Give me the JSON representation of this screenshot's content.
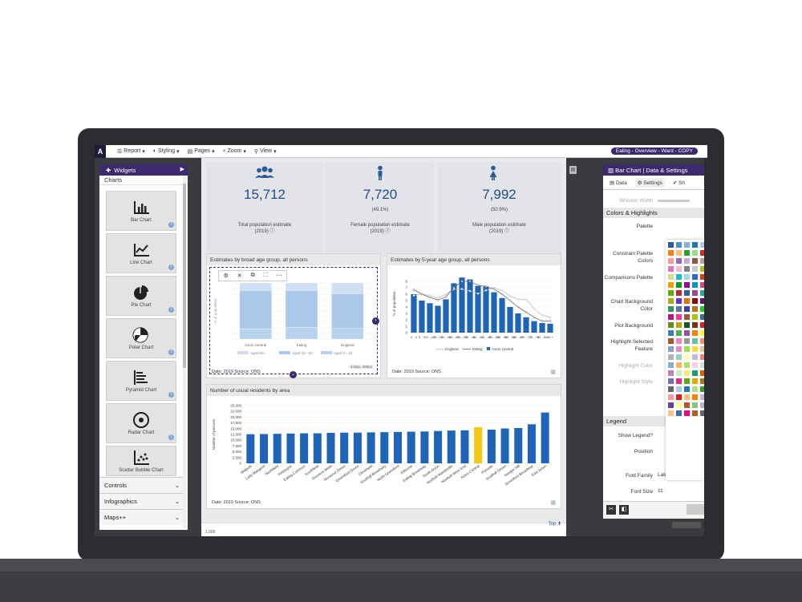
{
  "topbar": {
    "logo": "A",
    "menu": [
      {
        "label": "Report",
        "icon": "list-icon"
      },
      {
        "label": "Styling",
        "icon": "palette-icon"
      },
      {
        "label": "Pages",
        "icon": "pages-icon"
      },
      {
        "label": "Zoom",
        "icon": "search-icon"
      },
      {
        "label": "View",
        "icon": "location-icon"
      }
    ],
    "report_title": "Ealing - Overview - Ward - COPY"
  },
  "left_panel": {
    "header": "Widgets",
    "section": "Charts",
    "widgets": [
      {
        "label": "Bar Chart",
        "icon": "bar-chart-icon"
      },
      {
        "label": "Line Chart",
        "icon": "line-chart-icon"
      },
      {
        "label": "Pie Chart",
        "icon": "pie-chart-icon"
      },
      {
        "label": "Polar Chart",
        "icon": "polar-chart-icon"
      },
      {
        "label": "Pyramid Chart",
        "icon": "pyramid-chart-icon"
      },
      {
        "label": "Radar Chart",
        "icon": "radar-chart-icon"
      },
      {
        "label": "Scatter Bubble Chart",
        "icon": "scatter-chart-icon"
      }
    ],
    "bottom_sections": [
      "Controls",
      "Infographics",
      "Maps++"
    ]
  },
  "kpis": [
    {
      "value": "15,712",
      "pct": "",
      "label_line1": "Total population estimate",
      "label_line2": "(2019)",
      "icon": "people-icon"
    },
    {
      "value": "7,720",
      "pct": "(49.1%)",
      "label_line1": "Female population estimate",
      "label_line2": "(2019)",
      "icon": "female-icon"
    },
    {
      "value": "7,992",
      "pct": "(50.9%)",
      "label_line1": "Male population estimate",
      "label_line2": "(2019)",
      "icon": "male-icon"
    }
  ],
  "panels": {
    "broad_age": {
      "title": "Estimates by broad age group, all persons",
      "foot": "Date: 2019 Source: ONS",
      "size_badge": "443px, 289px",
      "x_labels": [
        "Acton Central",
        "Ealing",
        "England"
      ],
      "legend": [
        "Aged 65+",
        "Aged 16 - 64",
        "Aged 0 - 15"
      ],
      "ylabel": "% of population"
    },
    "five_year": {
      "title": "Estimates by 5-year age group, all persons",
      "foot": "Date: 2019 Source: ONS",
      "legend": [
        "England",
        "Ealing",
        "Acton Central"
      ],
      "ylabel": "% of population"
    },
    "residents": {
      "title": "Number of usual residents by area",
      "foot": "Date: 2019 Source: ONS",
      "ylabel": "Number of persons"
    },
    "bottom_top_link": "Top",
    "bottom_value": "1,000"
  },
  "chart_data": [
    {
      "type": "bar",
      "title": "Estimates by broad age group, all persons",
      "ylabel": "% of population",
      "categories": [
        "Acton Central",
        "Ealing",
        "England"
      ],
      "series": [
        {
          "name": "Aged 0 - 15",
          "values": [
            18,
            21,
            19
          ]
        },
        {
          "name": "Aged 16 - 64",
          "values": [
            69,
            66,
            62
          ]
        },
        {
          "name": "Aged 65+",
          "values": [
            13,
            13,
            19
          ]
        }
      ],
      "ylim": [
        0,
        100
      ],
      "stacked": true
    },
    {
      "type": "bar",
      "title": "Estimates by 5-year age group, all persons",
      "ylabel": "% of population",
      "categories": [
        "0 - 4",
        "5 - 9",
        "10 - 14",
        "15 - 19",
        "20 - 24",
        "25 - 29",
        "30 - 34",
        "35 - 39",
        "40 - 44",
        "45 - 49",
        "50 - 54",
        "55 - 59",
        "60 - 64",
        "65 - 69",
        "70 - 74",
        "75 - 79",
        "80 - 84",
        "85 +"
      ],
      "y_ticks": [
        "0",
        "1",
        "2",
        "3",
        "4",
        "5",
        "6",
        "7",
        "8"
      ],
      "series": [
        {
          "name": "Acton Central",
          "values": [
            6.0,
            5.0,
            4.6,
            4.2,
            5.2,
            7.7,
            8.6,
            8.3,
            7.3,
            7.2,
            6.3,
            5.4,
            4.0,
            3.0,
            2.4,
            1.8,
            1.5,
            1.4
          ]
        },
        {
          "name": "Ealing",
          "values": [
            6.7,
            6.0,
            5.5,
            5.1,
            5.6,
            7.0,
            8.0,
            8.0,
            7.4,
            7.2,
            6.8,
            6.0,
            5.0,
            4.0,
            3.2,
            2.4,
            1.8,
            1.8
          ]
        },
        {
          "name": "England",
          "values": [
            5.8,
            6.0,
            5.8,
            5.4,
            6.0,
            6.8,
            6.8,
            6.5,
            6.1,
            6.6,
            7.0,
            6.6,
            5.7,
            5.2,
            5.2,
            3.7,
            2.7,
            2.4
          ]
        }
      ],
      "ylim": [
        0,
        9
      ]
    },
    {
      "type": "bar",
      "title": "Number of usual residents by area",
      "ylabel": "Number of persons",
      "categories": [
        "Walpole",
        "Lady Margaret",
        "Northfield",
        "Hobbayne",
        "Ealing Common",
        "Southfield",
        "Dormers Wells",
        "Norwood Green",
        "Greenford Green",
        "Cleveland",
        "Southall Broadway",
        "North Greenford",
        "Elthorne",
        "Ealing Broadway",
        "South Acton",
        "Northolt Mandeville",
        "Northolt West End",
        "Acton Central",
        "Perivale",
        "Southall Green",
        "Hanger Hill",
        "Greenford Broadway",
        "East Acton"
      ],
      "values": [
        12600,
        12700,
        12800,
        12900,
        13000,
        13000,
        13200,
        13300,
        13300,
        13400,
        13500,
        13600,
        13700,
        13800,
        14000,
        14200,
        14300,
        15700,
        14600,
        15100,
        15300,
        16900,
        22000
      ],
      "highlight": "Acton Central",
      "y_ticks": [
        "0",
        "2,500",
        "5,000",
        "7,500",
        "10,000",
        "12,500",
        "15,000",
        "17,500",
        "20,000",
        "22,500",
        "25,000"
      ],
      "ylim": [
        0,
        25000
      ]
    }
  ],
  "right_panel": {
    "header": "Bar Chart | Data & Settings",
    "tabs": [
      "Data",
      "Settings",
      "Sh"
    ],
    "whisker_label": "Whisker Width",
    "section_colors": "Colors & Highlights",
    "rows": [
      "Palette",
      "Constrain Palette Colors",
      "Comparisons Palette",
      "Chart Background Color",
      "Plot Background",
      "Highlight Selected Feature",
      "Highlight Color",
      "Highlight Style"
    ],
    "section_legend": "Legend",
    "legend_rows": [
      "Show Legend?",
      "Position",
      "Font Family",
      "Font Size"
    ],
    "font_family_value": "Lato",
    "font_size_value": "11",
    "palette_colors": [
      "#2a5c9a",
      "#4a90d9",
      "#7fb3e6",
      "#1f77b4",
      "#aec7e8",
      "#ff7f0e",
      "#ffbb78",
      "#2ca02c",
      "#98df8a",
      "#d62728",
      "#ff9896",
      "#9467bd",
      "#c5b0d5",
      "#8c564b",
      "#c49c94",
      "#e377c2",
      "#f7b6d2",
      "#7f7f7f",
      "#c7c7c7",
      "#bcbd22",
      "#dbdb8d",
      "#17becf",
      "#9edae5",
      "#3366cc",
      "#dc3912",
      "#ff9900",
      "#109618",
      "#990099",
      "#0099c6",
      "#dd4477",
      "#66aa00",
      "#b82e2e",
      "#316395",
      "#994499",
      "#22aa99",
      "#aaaa11",
      "#6633cc",
      "#e67300",
      "#8b0707",
      "#651067",
      "#329262",
      "#5574a6",
      "#3b3eac",
      "#b77322",
      "#16d620",
      "#b91383",
      "#f4359e",
      "#9c5935",
      "#a9c413",
      "#2a778d",
      "#668d1c",
      "#bea413",
      "#0c5922",
      "#743411",
      "#e41a1c",
      "#377eb8",
      "#4daf4a",
      "#984ea3",
      "#ff7f00",
      "#ffff33",
      "#a65628",
      "#f781bf",
      "#999999",
      "#66c2a5",
      "#fc8d62",
      "#8da0cb",
      "#e78ac3",
      "#a6d854",
      "#ffd92f",
      "#e5c494",
      "#b3b3b3",
      "#8dd3c7",
      "#ffffb3",
      "#bebada",
      "#fb8072",
      "#80b1d3",
      "#fdb462",
      "#b3de69",
      "#fccde5",
      "#d9d9d9",
      "#bc80bd",
      "#ccebc5",
      "#ffed6f",
      "#1b9e77",
      "#d95f02",
      "#7570b3",
      "#e7298a",
      "#66a61e",
      "#e6ab02",
      "#a6761d",
      "#666666",
      "#a6cee3",
      "#1f78b4",
      "#b2df8a",
      "#33a02c",
      "#fb9a99",
      "#e31a1c",
      "#fdbf6f",
      "#ff7f00",
      "#cab2d6",
      "#6a3d9a",
      "#ffff99",
      "#b15928",
      "#7fc97f",
      "#beaed4",
      "#fdc086",
      "#386cb0",
      "#f0027f",
      "#bf5b17",
      "#666666"
    ]
  },
  "colors": {
    "accent_purple": "#3d2a6e",
    "bar_blue": "#1f65b7",
    "highlight_yellow": "#f5c518",
    "light_blue_1": "#b9d3ec",
    "light_blue_2": "#9dc1e6",
    "light_blue_3": "#cfe0f2"
  }
}
